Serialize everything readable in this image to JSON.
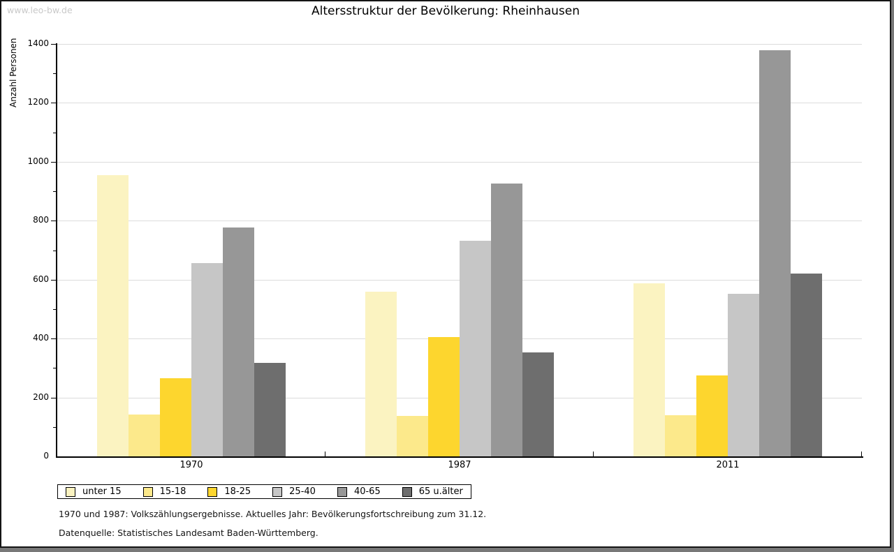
{
  "watermark": "www.leo-bw.de",
  "title": "Altersstruktur der Bevölkerung: Rheinhausen",
  "footnotes": {
    "line1": "1970 und 1987: Volkszählungsergebnisse. Aktuelles Jahr: Bevölkerungsfortschreibung zum 31.12.",
    "line2": "Datenquelle: Statistisches Landesamt Baden-Württemberg."
  },
  "chart_data": {
    "type": "bar",
    "title": "Altersstruktur der Bevölkerung: Rheinhausen",
    "xlabel": "",
    "ylabel": "Anzahl Personen",
    "ylim": [
      0,
      1400
    ],
    "ytick_step": 200,
    "minor_tick_step": 100,
    "grid": true,
    "legend_position": "bottom-left",
    "categories": [
      "1970",
      "1987",
      "2011"
    ],
    "series": [
      {
        "name": "unter 15",
        "color": "#FBF3C1",
        "values": [
          955,
          560,
          588
        ]
      },
      {
        "name": "15-18",
        "color": "#FCE98B",
        "values": [
          143,
          137,
          140
        ]
      },
      {
        "name": "18-25",
        "color": "#FDD62E",
        "values": [
          265,
          405,
          275
        ]
      },
      {
        "name": "25-40",
        "color": "#C6C6C6",
        "values": [
          655,
          733,
          552
        ]
      },
      {
        "name": "40-65",
        "color": "#979797",
        "values": [
          778,
          926,
          1378
        ]
      },
      {
        "name": "65 u.älter",
        "color": "#6E6E6E",
        "values": [
          317,
          353,
          620
        ]
      }
    ]
  }
}
